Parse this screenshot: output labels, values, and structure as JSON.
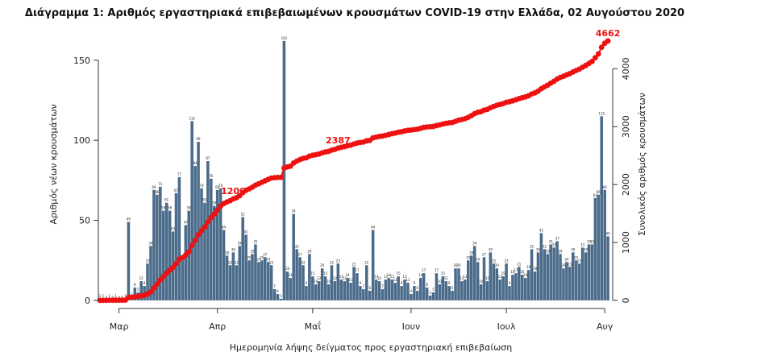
{
  "chart_data": {
    "type": "bar",
    "title": "Διάγραμμα 1: Αριθμός εργαστηριακά επιβεβαιωμένων κρουσμάτων COVID-19 στην Ελλάδα, 02 Αυγούστου 2020",
    "xlabel": "Ημερομηνία λήψης δείγματος προς εργαστηριακή επιβεβαίωση",
    "ylabel_left": "Αριθμός νέων κρουσμάτων",
    "ylabel_right": "Συνολικός αριθμός κρουσμάτων",
    "ylim_left": [
      0,
      170
    ],
    "ylim_right": [
      0,
      4700
    ],
    "yticks_left": [
      0,
      50,
      100,
      150
    ],
    "yticks_right": [
      0,
      1000,
      2000,
      3000,
      4000
    ],
    "x_ticks": [
      {
        "label": "Μαρ",
        "day": 6
      },
      {
        "label": "Απρ",
        "day": 37
      },
      {
        "label": "Μαΐ",
        "day": 67
      },
      {
        "label": "Ιουν",
        "day": 98
      },
      {
        "label": "Ιουλ",
        "day": 128
      },
      {
        "label": "Αυγ",
        "day": 159
      }
    ],
    "x_range": [
      -0.5,
      161.5
    ],
    "bar_color": "#4a6b8a",
    "line_color": "#ee1111",
    "new_cases": [
      1,
      1,
      0,
      1,
      0,
      1,
      0,
      0,
      1,
      49,
      2,
      8,
      5,
      12,
      9,
      23,
      34,
      69,
      66,
      71,
      56,
      61,
      56,
      43,
      67,
      77,
      25,
      47,
      56,
      112,
      84,
      99,
      70,
      61,
      87,
      76,
      59,
      69,
      70,
      44,
      28,
      22,
      30,
      22,
      34,
      52,
      41,
      25,
      29,
      35,
      24,
      25,
      27,
      24,
      22,
      7,
      4,
      1,
      162,
      18,
      14,
      54,
      32,
      27,
      22,
      9,
      29,
      15,
      10,
      12,
      20,
      15,
      10,
      22,
      12,
      23,
      13,
      12,
      14,
      11,
      21,
      17,
      9,
      7,
      22,
      6,
      44,
      13,
      12,
      7,
      13,
      14,
      13,
      11,
      15,
      9,
      13,
      11,
      4,
      9,
      6,
      14,
      17,
      8,
      3,
      5,
      17,
      10,
      15,
      12,
      9,
      6,
      20,
      20,
      12,
      13,
      25,
      28,
      34,
      24,
      10,
      27,
      12,
      30,
      23,
      20,
      13,
      15,
      23,
      9,
      16,
      17,
      21,
      16,
      14,
      19,
      32,
      18,
      30,
      42,
      32,
      29,
      35,
      33,
      37,
      29,
      20,
      24,
      21,
      30,
      25,
      23,
      33,
      30,
      35,
      35,
      64,
      66,
      115,
      69,
      40
    ],
    "cum_labels": [
      {
        "text": "1200",
        "day": 42
      },
      {
        "text": "2387",
        "day": 75
      },
      {
        "text": "4662",
        "day": 160
      }
    ]
  }
}
